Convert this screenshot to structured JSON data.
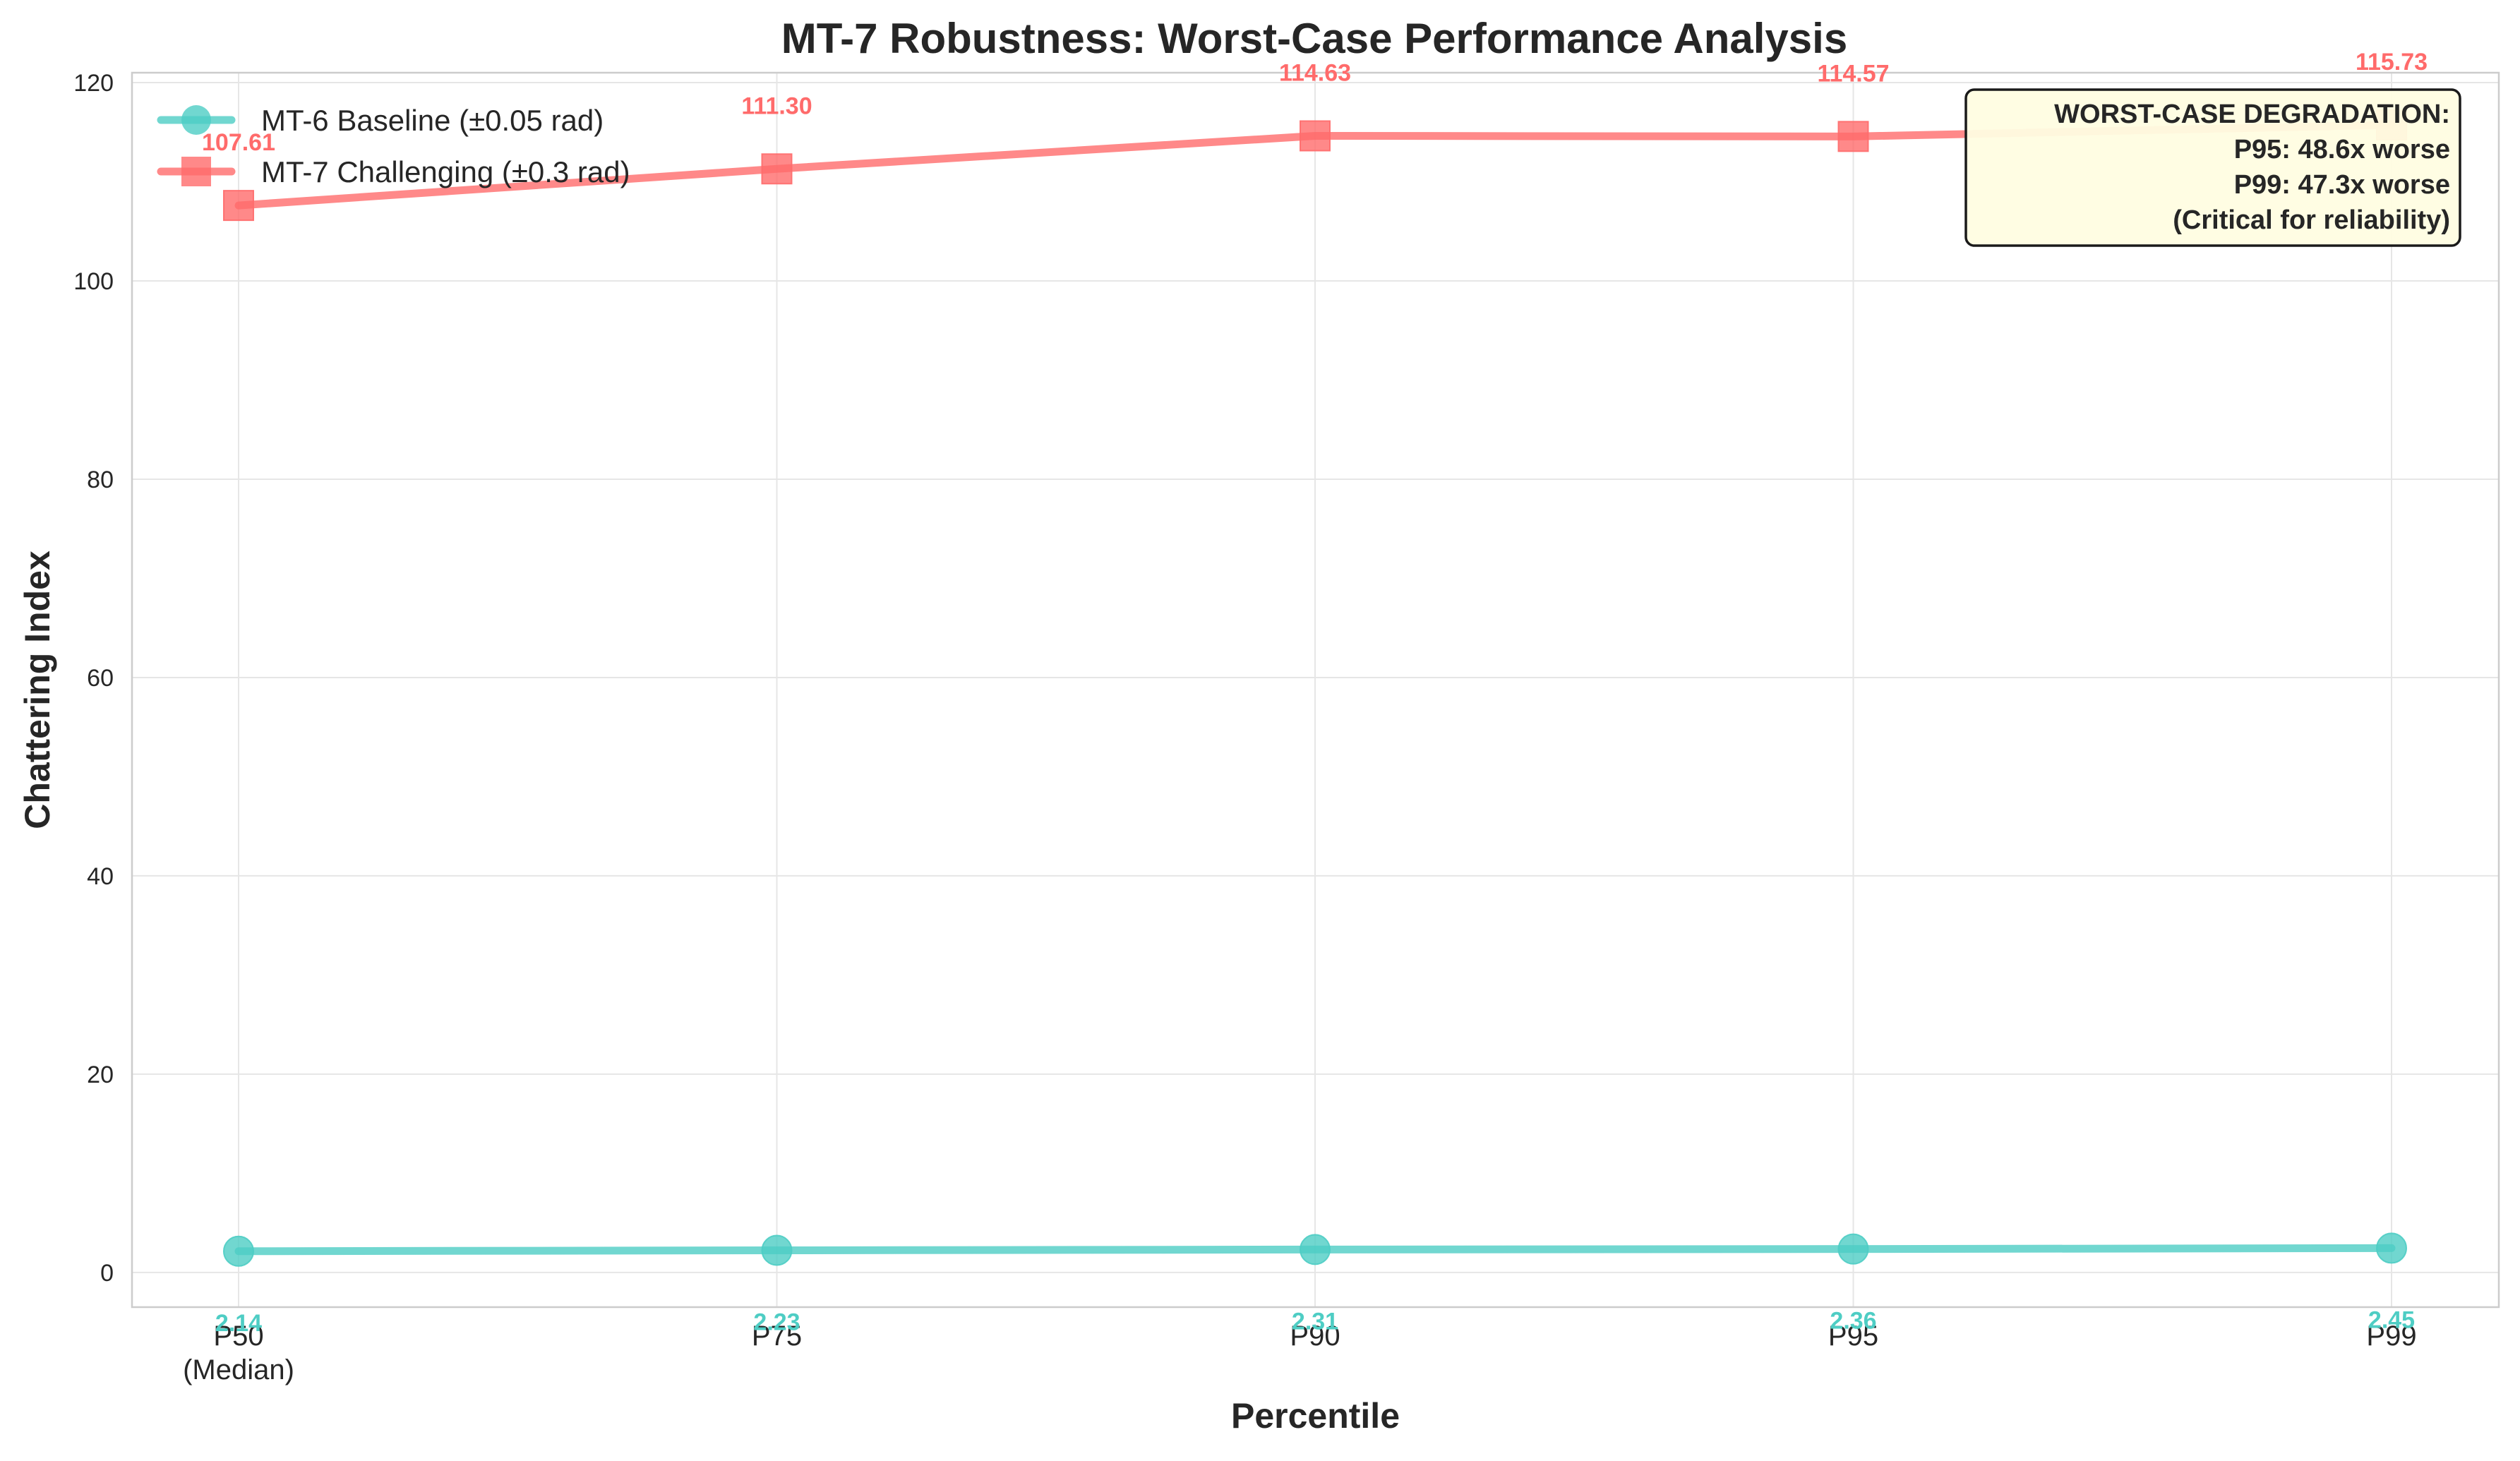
{
  "chart_data": {
    "type": "line",
    "title": "MT-7 Robustness: Worst-Case Performance Analysis",
    "xlabel": "Percentile",
    "ylabel": "Chattering Index",
    "categories": [
      "P50\n(Median)",
      "P75",
      "P90",
      "P95",
      "P99"
    ],
    "ylim": [
      -3.5,
      121
    ],
    "yticks": [
      0,
      20,
      40,
      60,
      80,
      100,
      120
    ],
    "grid": true,
    "legend_position": "top-left",
    "series": [
      {
        "name": "MT-6 Baseline (±0.05 rad)",
        "values": [
          2.14,
          2.23,
          2.31,
          2.36,
          2.45
        ],
        "labels": [
          "2.14",
          "2.23",
          "2.31",
          "2.36",
          "2.45"
        ],
        "color": "#4ecdc4",
        "marker": "circle"
      },
      {
        "name": "MT-7 Challenging (±0.3 rad)",
        "values": [
          107.61,
          111.3,
          114.63,
          114.57,
          115.73
        ],
        "labels": [
          "107.61",
          "111.30",
          "114.63",
          "114.57",
          "115.73"
        ],
        "color": "#ff6b6b",
        "marker": "square"
      }
    ],
    "annotation": {
      "lines": [
        "WORST-CASE DEGRADATION:",
        "P95: 48.6x worse",
        "P99: 47.3x worse",
        "(Critical for reliability)"
      ],
      "position": "top-right",
      "background": "#fffde1"
    }
  }
}
